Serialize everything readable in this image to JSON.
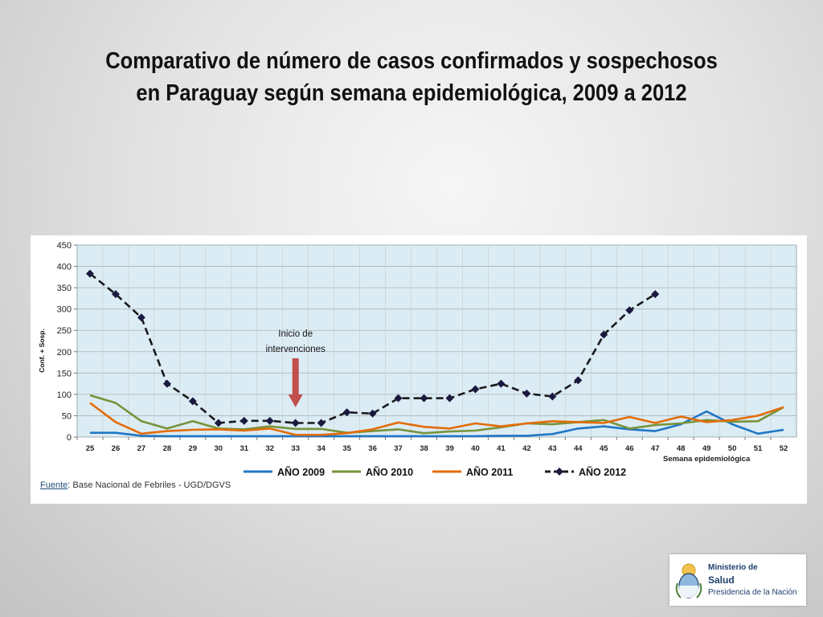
{
  "slide": {
    "title_line1": "Comparativo de número de casos confirmados y sospechosos",
    "title_line2": "en Paraguay  según semana epidemiológica, 2009 a 2012"
  },
  "source": {
    "label": "Fuente",
    "text": ": Base Nacional  de Febriles - UGD/DGVS"
  },
  "logo": {
    "line1": "Ministerio de",
    "line2": "Salud",
    "line3": "Presidencia de la Nación"
  },
  "chart_data": {
    "type": "line",
    "title": "",
    "xlabel": "Semana epidemiológica",
    "ylabel": "Conf. + Sosp.",
    "ylim": [
      0,
      450
    ],
    "yticks": [
      0,
      50,
      100,
      150,
      200,
      250,
      300,
      350,
      400,
      450
    ],
    "grid": true,
    "legend_position": "bottom",
    "categories": [
      "25",
      "26",
      "27",
      "28",
      "29",
      "30",
      "31",
      "32",
      "33",
      "34",
      "35",
      "36",
      "37",
      "38",
      "39",
      "40",
      "41",
      "42",
      "43",
      "44",
      "45",
      "46",
      "47",
      "48",
      "49",
      "50",
      "51",
      "52"
    ],
    "annotation": {
      "text_line1": "Inicio de",
      "text_line2": "intervenciones",
      "at_category": "33",
      "color": "#c0504d"
    },
    "series": [
      {
        "name": "AÑO 2009",
        "color": "#1f77c4",
        "dashed": false,
        "markers": false,
        "values": [
          10,
          10,
          3,
          2,
          2,
          2,
          2,
          2,
          2,
          2,
          2,
          2,
          2,
          2,
          2,
          2,
          3,
          3,
          7,
          20,
          25,
          18,
          14,
          30,
          60,
          30,
          8,
          17
        ]
      },
      {
        "name": "AÑO 2010",
        "color": "#77933c",
        "dashed": false,
        "markers": false,
        "values": [
          98,
          80,
          37,
          20,
          37,
          20,
          18,
          25,
          19,
          19,
          10,
          14,
          18,
          9,
          13,
          15,
          23,
          32,
          30,
          35,
          40,
          20,
          28,
          32,
          40,
          36,
          37,
          70
        ]
      },
      {
        "name": "AÑO 2011",
        "color": "#e36c09",
        "dashed": false,
        "markers": false,
        "values": [
          80,
          35,
          8,
          14,
          17,
          18,
          15,
          20,
          5,
          5,
          9,
          18,
          34,
          24,
          20,
          32,
          25,
          32,
          37,
          35,
          33,
          47,
          33,
          48,
          35,
          40,
          50,
          70
        ]
      },
      {
        "name": "AÑO 2012",
        "color": "#1a1a1a",
        "dashed": true,
        "markers": true,
        "values": [
          383,
          335,
          280,
          125,
          84,
          33,
          38,
          38,
          33,
          33,
          58,
          55,
          91,
          91,
          91,
          112,
          125,
          102,
          95,
          133,
          240,
          297,
          335,
          null,
          null,
          null,
          null,
          null
        ]
      }
    ]
  }
}
